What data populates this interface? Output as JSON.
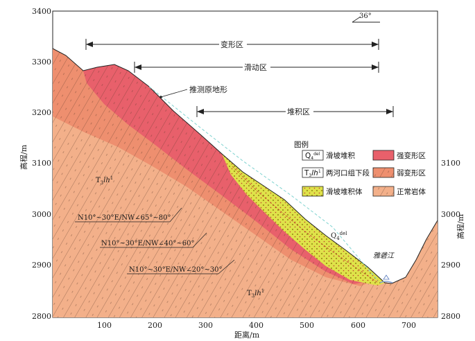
{
  "axes": {
    "y_left_ticks": [
      "3400",
      "3300",
      "3200",
      "3100",
      "3000",
      "2900",
      "2800"
    ],
    "y_right_ticks": [
      "3100",
      "3000",
      "2900",
      "2800"
    ],
    "x_ticks": [
      "100",
      "200",
      "300",
      "400",
      "500",
      "600",
      "700"
    ],
    "ylabel_left": "高程/m",
    "ylabel_right": "高程/m",
    "xlabel": "距离/m"
  },
  "orientation": "36°",
  "zones": {
    "deformation": "变形区",
    "sliding": "滑动区",
    "accumulation": "堆积区"
  },
  "annotations": {
    "inferred_ground": "推测原地形",
    "river": "雅砻江",
    "strata_upper": "T",
    "strata_upper_sub": "3",
    "strata_upper_rest": "lh",
    "strata_upper_sup": "1",
    "q4_main": "Q",
    "q4_sub": "4",
    "q4_sup": "del",
    "joint1": "N10°~30°E/NW∠65°~80°",
    "joint2": "N10°~30°E/NW∠40°~60°",
    "joint3": "N10°~30°E/NW∠20°~30°"
  },
  "legend": {
    "title": "图例",
    "items": [
      {
        "key": "q4",
        "symbol_main": "Q",
        "symbol_sub": "4",
        "symbol_sup": "del",
        "label": "滑坡堆积"
      },
      {
        "key": "strong",
        "label": "强变形区",
        "color": "#e8606b"
      },
      {
        "key": "t3",
        "symbol_main": "T",
        "symbol_sub": "3",
        "symbol_rest": "lh",
        "symbol_sup": "1",
        "label": "两河口组下段"
      },
      {
        "key": "weak",
        "label": "弱变形区",
        "color": "#ee8f6f"
      },
      {
        "key": "deposit",
        "label": "滑坡堆积体",
        "color": "#dfe24a"
      },
      {
        "key": "normal",
        "label": "正常岩体",
        "color": "#f3b08a"
      }
    ]
  },
  "colors": {
    "strong": "#e8606b",
    "weak": "#ee8f6f",
    "normal": "#f3b08a",
    "deposit": "#dfe24a",
    "river": "#8aa3d6",
    "dashed": "#7fd3d0"
  }
}
